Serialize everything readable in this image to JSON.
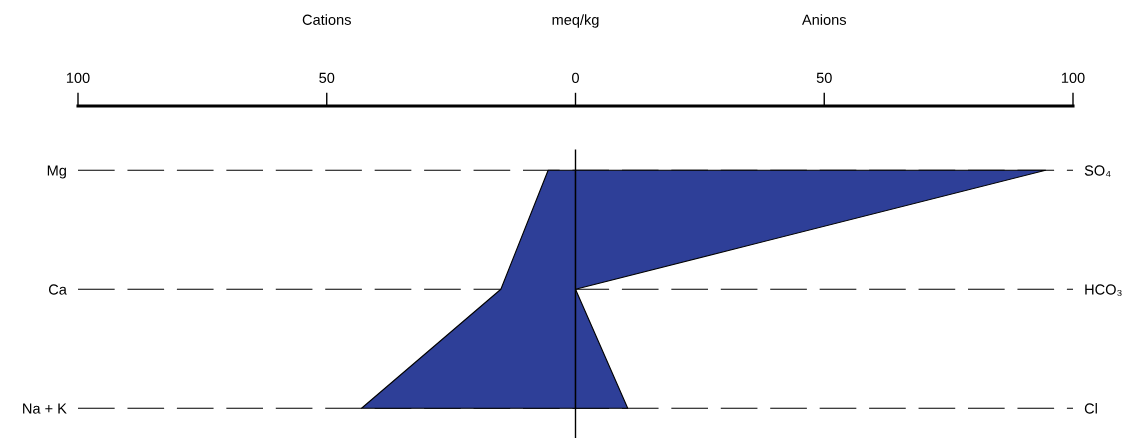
{
  "chart_data": {
    "type": "area",
    "orientation": "horizontal",
    "xlabel": "meq/kg",
    "annotations": [
      "Cations",
      "Anions"
    ],
    "categories": [
      "Mg",
      "Ca",
      "Na + K"
    ],
    "y2_categories": [
      "SO₄",
      "HCO₃",
      "Cl"
    ],
    "series": [
      {
        "color": "#2e3f98",
        "values": [
          -5.5,
          -15,
          -43
        ]
      },
      {
        "color": "#2e3f98",
        "values": [
          94.5,
          0,
          10.5
        ]
      }
    ],
    "xlim": [
      -100,
      100
    ],
    "xticks": [
      {
        "value": -100,
        "label": "100"
      },
      {
        "value": -50,
        "label": "50"
      },
      0,
      50,
      100
    ],
    "ref_lines": [
      {
        "axis": "x",
        "value": 0
      }
    ],
    "grid": "y"
  }
}
